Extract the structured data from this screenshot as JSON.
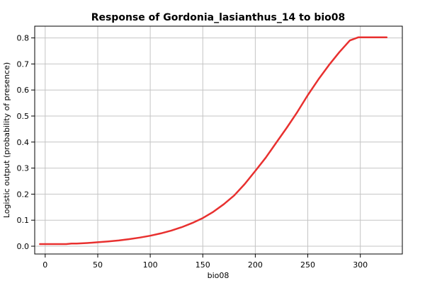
{
  "chart_data": {
    "type": "line",
    "title": "Response of Gordonia_lasianthus_14 to bio08",
    "xlabel": "bio08",
    "ylabel": "Logistic output (probability of presence)",
    "xlim": [
      -10,
      340
    ],
    "ylim": [
      -0.03,
      0.845
    ],
    "x_ticks": [
      0,
      50,
      100,
      150,
      200,
      250,
      300
    ],
    "y_ticks": [
      0.0,
      0.1,
      0.2,
      0.3,
      0.4,
      0.5,
      0.6,
      0.7,
      0.8
    ],
    "grid": true,
    "series": [
      {
        "color": "#e8302f",
        "x": [
          -5,
          0,
          10,
          20,
          25,
          30,
          40,
          50,
          60,
          70,
          80,
          90,
          100,
          110,
          120,
          130,
          140,
          150,
          160,
          170,
          180,
          190,
          200,
          210,
          220,
          230,
          240,
          250,
          260,
          270,
          280,
          290,
          298,
          300,
          325
        ],
        "y": [
          0.008,
          0.008,
          0.008,
          0.008,
          0.01,
          0.01,
          0.012,
          0.015,
          0.018,
          0.022,
          0.027,
          0.033,
          0.04,
          0.049,
          0.06,
          0.073,
          0.089,
          0.108,
          0.132,
          0.161,
          0.195,
          0.239,
          0.289,
          0.34,
          0.398,
          0.455,
          0.515,
          0.58,
          0.64,
          0.695,
          0.745,
          0.79,
          0.802,
          0.802,
          0.802
        ]
      }
    ]
  }
}
